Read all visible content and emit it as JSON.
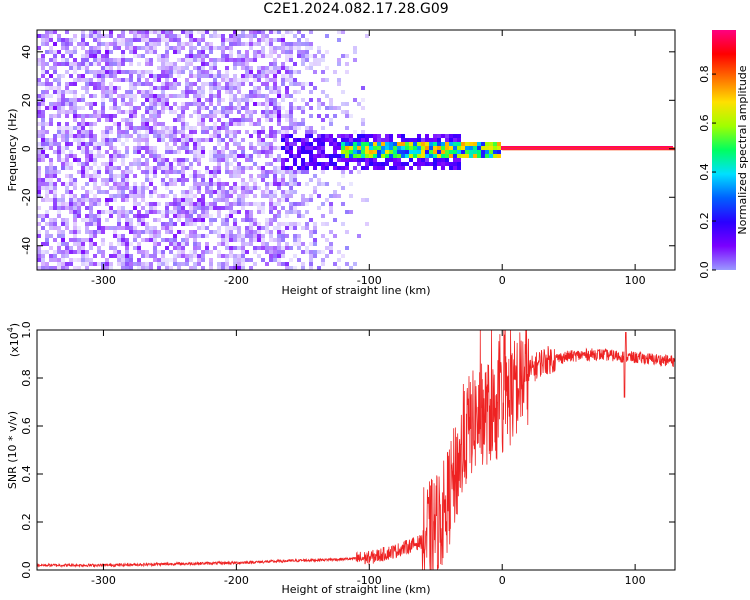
{
  "title": "C2E1.2024.082.17.28.G09",
  "chart_data": [
    {
      "type": "heatmap",
      "xlabel": "Height of straight line (km)",
      "ylabel": "Frequency (Hz)",
      "xlim": [
        -350,
        130
      ],
      "ylim": [
        -50,
        49
      ],
      "x_ticks": [
        -300,
        -200,
        -100,
        0,
        100
      ],
      "y_ticks": [
        -40,
        -20,
        0,
        20,
        40
      ],
      "colorbar": {
        "label": "Normalized spectral amplitude",
        "range": [
          0,
          0.98
        ],
        "ticks": [
          "0.0",
          "0.2",
          "0.4",
          "0.6",
          "0.8"
        ],
        "colormap": [
          "#9a9aff",
          "#7a00ff",
          "#2a00ff",
          "#0060ff",
          "#00e0ff",
          "#00ff60",
          "#a0ff00",
          "#ffe000",
          "#ff7000",
          "#ff0000",
          "#ff0080"
        ]
      },
      "regions": [
        {
          "x_range": [
            -350,
            -160
          ],
          "freq_range": [
            -50,
            49
          ],
          "level": 0.05
        },
        {
          "x_range": [
            -160,
            -100
          ],
          "freq_range": [
            -50,
            49
          ],
          "level": 0.03
        },
        {
          "x_range": [
            -165,
            -30
          ],
          "freq_range": [
            -8,
            6
          ],
          "level": 0.15
        },
        {
          "x_range": [
            -120,
            0
          ],
          "freq_range": [
            -3,
            3
          ],
          "level": 0.55
        },
        {
          "x_range": [
            0,
            130
          ],
          "freq_range": [
            -1,
            1
          ],
          "level": 0.98
        }
      ]
    },
    {
      "type": "line",
      "xlabel": "Height of straight line (km)",
      "ylabel": "SNR (10 * v/v)",
      "y_multiplier": "(x10",
      "y_multiplier_exp": "4",
      "y_multiplier_close": ")",
      "xlim": [
        -350,
        130
      ],
      "ylim": [
        0,
        1.0
      ],
      "x_ticks": [
        -300,
        -200,
        -100,
        0,
        100
      ],
      "y_ticks": [
        "0.0",
        "0.2",
        "0.4",
        "0.6",
        "0.8",
        "1.0"
      ],
      "color": "#ee2222",
      "series": [
        {
          "x": [
            -350,
            -300,
            -250,
            -200,
            -150,
            -120,
            -100,
            -80,
            -60,
            -45,
            -35,
            -25,
            -15,
            -5,
            5,
            15,
            30,
            50,
            70,
            90,
            110,
            130
          ],
          "y": [
            0.02,
            0.02,
            0.025,
            0.03,
            0.04,
            0.045,
            0.05,
            0.08,
            0.12,
            0.22,
            0.4,
            0.6,
            0.65,
            0.66,
            0.72,
            0.8,
            0.87,
            0.89,
            0.9,
            0.89,
            0.88,
            0.87
          ]
        }
      ]
    }
  ]
}
